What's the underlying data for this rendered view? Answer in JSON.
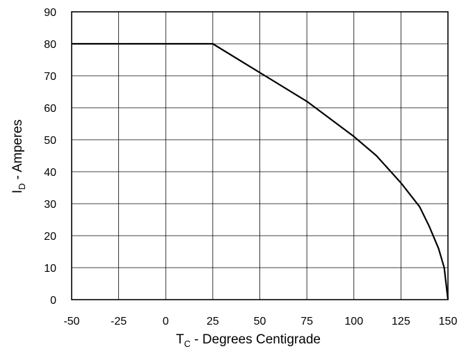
{
  "chart_data": {
    "type": "line",
    "xlabel": {
      "main": "T",
      "sub": "C",
      "rest": " - Degrees Centigrade"
    },
    "ylabel": {
      "main": "I",
      "sub": "D",
      "rest": " - Amperes"
    },
    "xlim": [
      -50,
      150
    ],
    "ylim": [
      0,
      90
    ],
    "x_ticks": [
      -50,
      -25,
      0,
      25,
      50,
      75,
      100,
      125,
      150
    ],
    "y_ticks": [
      0,
      10,
      20,
      30,
      40,
      50,
      60,
      70,
      80,
      90
    ],
    "grid": true,
    "line_color": "#000000",
    "series": [
      {
        "x": [
          -50,
          25,
          50,
          75,
          100,
          112,
          125,
          135,
          140,
          145,
          148,
          150
        ],
        "y": [
          80,
          80,
          71,
          62,
          51,
          45,
          36.5,
          29,
          23,
          16,
          10,
          0
        ]
      }
    ]
  }
}
